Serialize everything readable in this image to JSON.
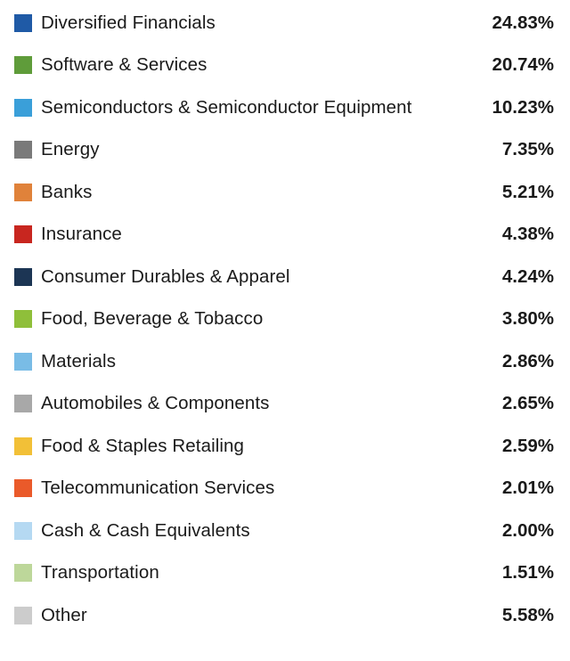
{
  "chart_data": {
    "type": "table",
    "title": "",
    "legend": "list",
    "items": [
      {
        "label": "Diversified Financials",
        "value_text": "24.83%",
        "value": 24.83,
        "color": "#1f5aa6"
      },
      {
        "label": "Software & Services",
        "value_text": "20.74%",
        "value": 20.74,
        "color": "#5f9c3a"
      },
      {
        "label": "Semiconductors & Semiconductor Equipment",
        "value_text": "10.23%",
        "value": 10.23,
        "color": "#3a9fd9"
      },
      {
        "label": "Energy",
        "value_text": "7.35%",
        "value": 7.35,
        "color": "#7a7a7a"
      },
      {
        "label": "Banks",
        "value_text": "5.21%",
        "value": 5.21,
        "color": "#e0823a"
      },
      {
        "label": "Insurance",
        "value_text": "4.38%",
        "value": 4.38,
        "color": "#c8261f"
      },
      {
        "label": "Consumer Durables & Apparel",
        "value_text": "4.24%",
        "value": 4.24,
        "color": "#1c3554"
      },
      {
        "label": "Food, Beverage & Tobacco",
        "value_text": "3.80%",
        "value": 3.8,
        "color": "#8fbf3a"
      },
      {
        "label": "Materials",
        "value_text": "2.86%",
        "value": 2.86,
        "color": "#79bce6"
      },
      {
        "label": "Automobiles & Components",
        "value_text": "2.65%",
        "value": 2.65,
        "color": "#a8a8a8"
      },
      {
        "label": "Food & Staples Retailing",
        "value_text": "2.59%",
        "value": 2.59,
        "color": "#f2c037"
      },
      {
        "label": "Telecommunication Services",
        "value_text": "2.01%",
        "value": 2.01,
        "color": "#ea5a2a"
      },
      {
        "label": "Cash & Cash Equivalents",
        "value_text": "2.00%",
        "value": 2.0,
        "color": "#b5d9f2"
      },
      {
        "label": "Transportation",
        "value_text": "1.51%",
        "value": 1.51,
        "color": "#bdd79a"
      },
      {
        "label": "Other",
        "value_text": "5.58%",
        "value": 5.58,
        "color": "#cccccc"
      }
    ]
  }
}
